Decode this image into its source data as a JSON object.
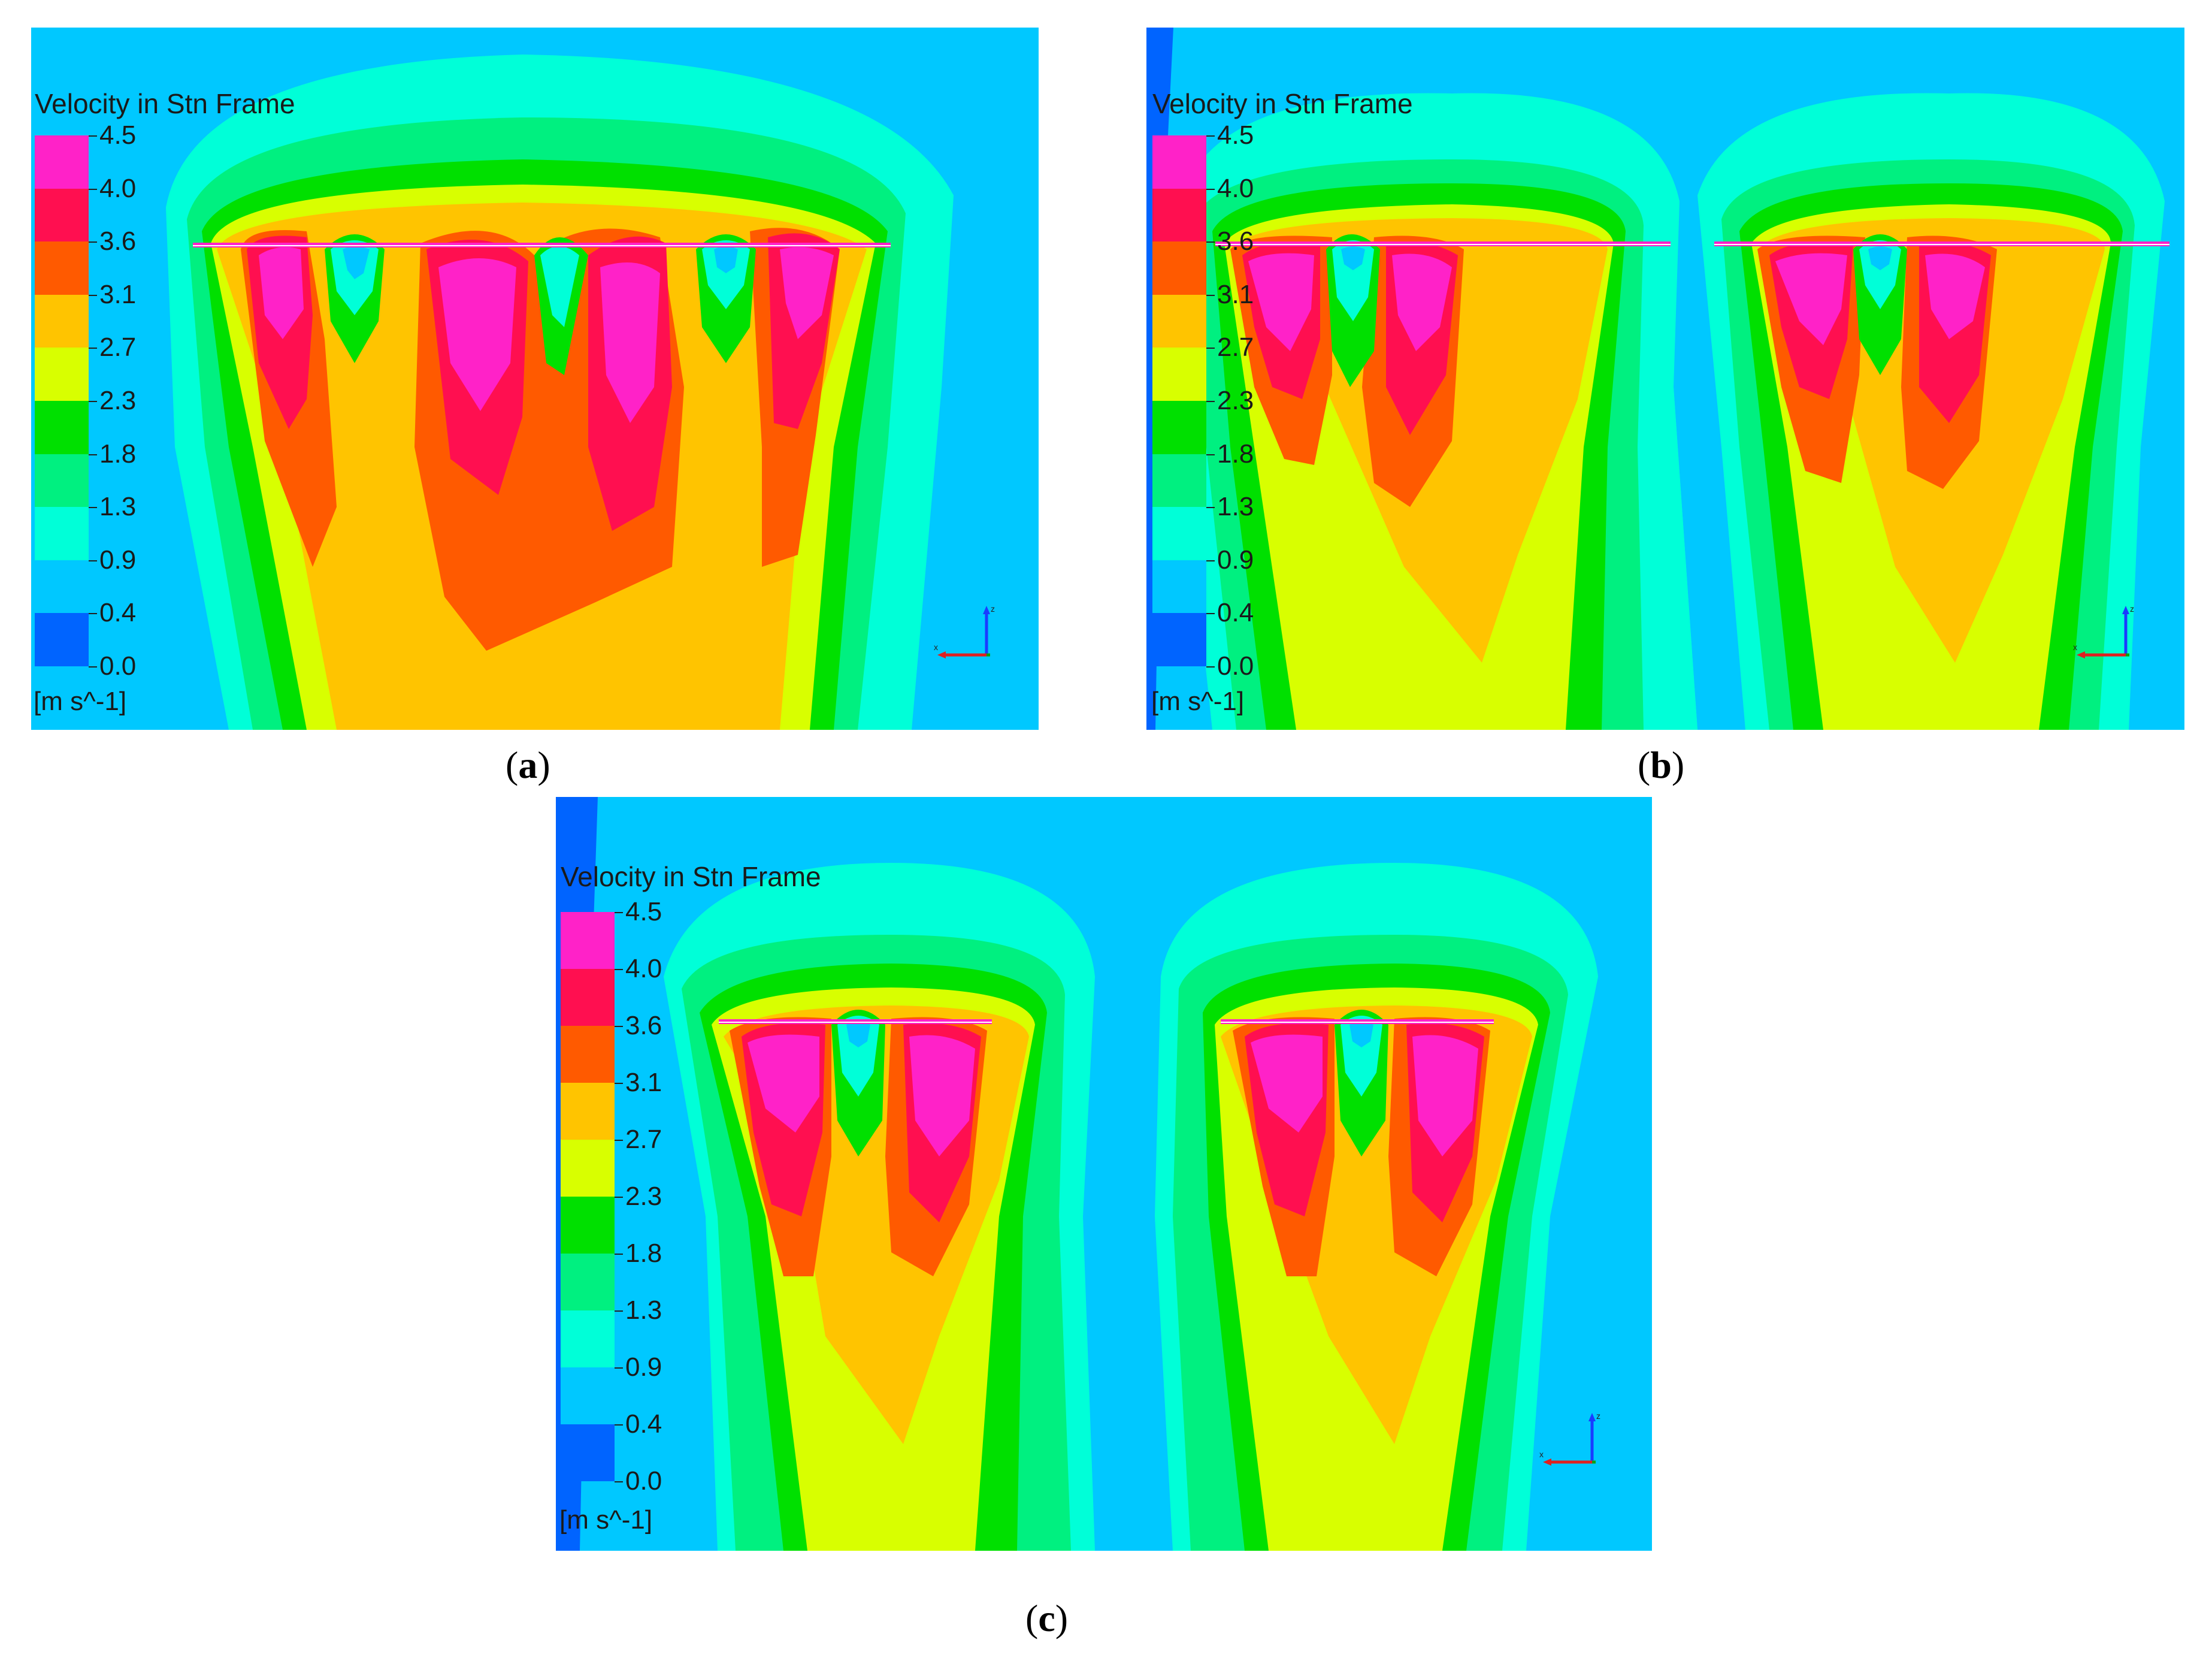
{
  "legend": {
    "title": "Velocity in Stn Frame",
    "ticks": [
      "4.5",
      "4.0",
      "3.6",
      "3.1",
      "2.7",
      "2.3",
      "1.8",
      "1.3",
      "0.9",
      "0.4",
      "0.0"
    ],
    "unit": "[m s^-1]",
    "colors": [
      "#ff22c8",
      "#ff0f50",
      "#ff5a00",
      "#ffc400",
      "#d8ff00",
      "#00e000",
      "#00f080",
      "#00ffd8",
      "#00c8ff",
      "#0064ff"
    ]
  },
  "palette": {
    "background": "#00c8ff",
    "cyan": "#00ffd8",
    "seafoam": "#00f080",
    "green": "#00e000",
    "yellowgreen": "#d8ff00",
    "yellow": "#ffc400",
    "orange": "#ff5a00",
    "red": "#ff0f50",
    "magenta": "#ff22c8",
    "deepblue": "#0064ff"
  },
  "captions": {
    "a": {
      "open": "(",
      "letter": "a",
      "close": ")"
    },
    "b": {
      "open": "(",
      "letter": "b",
      "close": ")"
    },
    "c": {
      "open": "(",
      "letter": "c",
      "close": ")"
    }
  },
  "axis_labels": {
    "z": "z",
    "x": "x"
  }
}
